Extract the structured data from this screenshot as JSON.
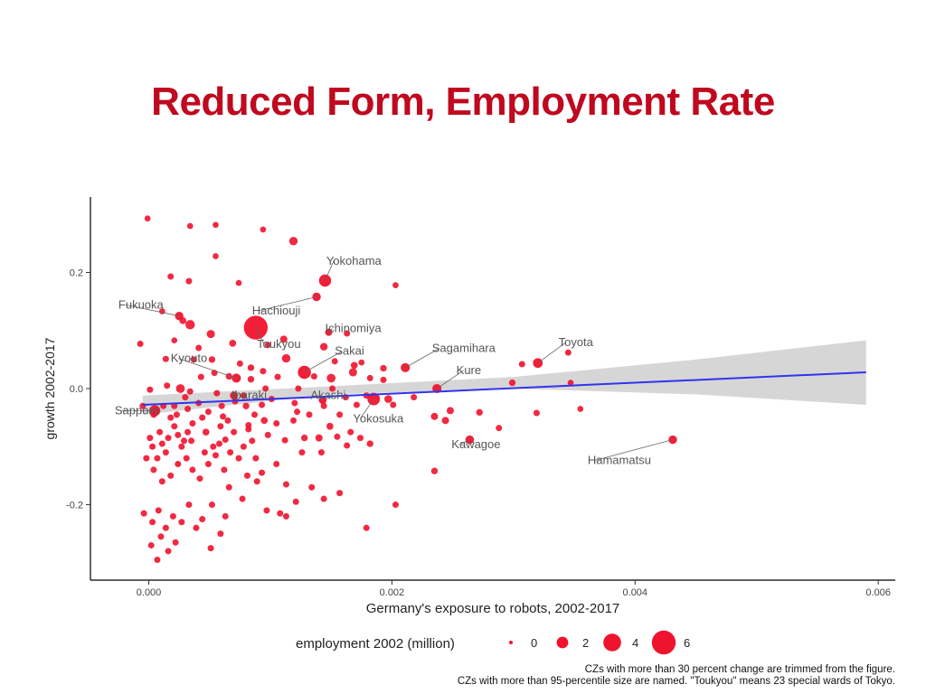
{
  "title": "Reduced Form, Employment Rate",
  "chart_data": {
    "type": "scatter",
    "xlabel": "Germany's exposure to robots, 2002-2017",
    "ylabel": "growth 2002-2017",
    "xlim": [
      -0.00048,
      0.00614
    ],
    "ylim": [
      -0.33,
      0.33
    ],
    "xticks": [
      0.0,
      0.002,
      0.004,
      0.006
    ],
    "xtick_labels": [
      "0.000",
      "0.002",
      "0.004",
      "0.006"
    ],
    "yticks": [
      -0.2,
      0.0,
      0.2
    ],
    "ytick_labels": [
      "-0.2",
      "0.0",
      "0.2"
    ],
    "color": "#f0132d",
    "fit_color": "#3333ee",
    "band_color": "#d6d6d6",
    "fit": {
      "x0": -5e-05,
      "y0": -0.028,
      "x1": 0.0059,
      "y1": 0.028
    },
    "band": {
      "upper": [
        [
          -5e-05,
          -0.012
        ],
        [
          0.0015,
          0.004
        ],
        [
          0.003,
          0.02
        ],
        [
          0.0045,
          0.05
        ],
        [
          0.0059,
          0.083
        ]
      ],
      "lower": [
        [
          0.0059,
          -0.028
        ],
        [
          0.0045,
          -0.01
        ],
        [
          0.003,
          0.0
        ],
        [
          0.0015,
          -0.01
        ],
        [
          -5e-05,
          -0.045
        ]
      ]
    },
    "legend": {
      "title": "employment 2002 (million)",
      "entries": [
        {
          "label": "0",
          "size": 0
        },
        {
          "label": "2",
          "size": 2
        },
        {
          "label": "4",
          "size": 4
        },
        {
          "label": "6",
          "size": 6
        }
      ]
    },
    "notes": [
      "CZs with more than 30 percent change are trimmed from the figure.",
      "CZs with more than 95-percentile size are named. \"Toukyou\" means 23 special wards of Tokyo."
    ],
    "named": [
      {
        "label": "Yokohama",
        "x": 0.00145,
        "y": 0.186,
        "size": 2.2,
        "lx": 0.00146,
        "ly": 0.213,
        "anchor": "start"
      },
      {
        "label": "Fukuoka",
        "x": 0.00025,
        "y": 0.125,
        "size": 1.0,
        "lx": -0.00025,
        "ly": 0.138,
        "anchor": "start"
      },
      {
        "label": "Hachiouji",
        "x": 0.00138,
        "y": 0.158,
        "size": 1.0,
        "lx": 0.00085,
        "ly": 0.128,
        "anchor": "start"
      },
      {
        "label": "Ichinomiya",
        "x": 0.00148,
        "y": 0.097,
        "size": 0.6,
        "lx": 0.00145,
        "ly": 0.097,
        "anchor": "start"
      },
      {
        "label": "Toukyou",
        "x": 0.00088,
        "y": 0.105,
        "size": 6.0,
        "lx": 0.00089,
        "ly": 0.07,
        "anchor": "start"
      },
      {
        "label": "Sakai",
        "x": 0.00128,
        "y": 0.028,
        "size": 2.5,
        "lx": 0.00153,
        "ly": 0.058,
        "anchor": "start"
      },
      {
        "label": "Kyouto",
        "x": 0.00072,
        "y": 0.018,
        "size": 1.2,
        "lx": 0.00018,
        "ly": 0.046,
        "anchor": "start"
      },
      {
        "label": "Sagamihara",
        "x": 0.00211,
        "y": 0.036,
        "size": 1.2,
        "lx": 0.00233,
        "ly": 0.063,
        "anchor": "start"
      },
      {
        "label": "Toyota",
        "x": 0.0032,
        "y": 0.044,
        "size": 1.4,
        "lx": 0.00337,
        "ly": 0.073,
        "anchor": "start"
      },
      {
        "label": "Kure",
        "x": 0.00237,
        "y": 0.0,
        "size": 1.2,
        "lx": 0.00253,
        "ly": 0.025,
        "anchor": "start"
      },
      {
        "label": "Ibaraki",
        "x": 0.0007,
        "y": -0.012,
        "size": 0.8,
        "lx": 0.00068,
        "ly": -0.018,
        "anchor": "start"
      },
      {
        "label": "Akashi",
        "x": 0.00143,
        "y": -0.02,
        "size": 0.8,
        "lx": 0.00133,
        "ly": -0.018,
        "anchor": "start"
      },
      {
        "label": "Sapporo",
        "x": 5e-05,
        "y": -0.038,
        "size": 1.8,
        "lx": -0.00028,
        "ly": -0.044,
        "anchor": "start"
      },
      {
        "label": "Yokosuka",
        "x": 0.00185,
        "y": -0.018,
        "size": 2.3,
        "lx": 0.00168,
        "ly": -0.058,
        "anchor": "start"
      },
      {
        "label": "Kawagoe",
        "x": 0.00264,
        "y": -0.088,
        "size": 1.0,
        "lx": 0.00249,
        "ly": -0.103,
        "anchor": "start"
      },
      {
        "label": "Hamamatsu",
        "x": 0.00431,
        "y": -0.088,
        "size": 1.0,
        "lx": 0.00361,
        "ly": -0.13,
        "anchor": "start"
      }
    ],
    "points": [
      [
        -1e-05,
        0.293,
        0.2
      ],
      [
        0.00034,
        0.28,
        0.2
      ],
      [
        0.00055,
        0.282,
        0.2
      ],
      [
        0.00094,
        0.274,
        0.2
      ],
      [
        0.00119,
        0.254,
        1.0
      ],
      [
        0.00055,
        0.228,
        0.2
      ],
      [
        0.00018,
        0.193,
        0.3
      ],
      [
        0.00033,
        0.185,
        0.3
      ],
      [
        0.00074,
        0.182,
        0.2
      ],
      [
        0.00203,
        0.178,
        0.2
      ],
      [
        0.00011,
        0.133,
        0.2
      ],
      [
        0.00028,
        0.117,
        0.5
      ],
      [
        0.00034,
        0.11,
        1.3
      ],
      [
        0.00051,
        0.094,
        0.9
      ],
      [
        0.00111,
        0.085,
        0.6
      ],
      [
        0.00144,
        0.072,
        0.7
      ],
      [
        0.00163,
        0.095,
        0.3
      ],
      [
        0.00098,
        0.075,
        0.3
      ],
      [
        0.00069,
        0.078,
        0.5
      ],
      [
        -7e-05,
        0.077,
        0.3
      ],
      [
        0.00021,
        0.083,
        0.2
      ],
      [
        0.00041,
        0.07,
        0.3
      ],
      [
        0.00052,
        0.05,
        0.4
      ],
      [
        0.00113,
        0.052,
        1.0
      ],
      [
        0.00037,
        0.05,
        0.3
      ],
      [
        0.00014,
        0.051,
        0.3
      ],
      [
        0.00153,
        0.047,
        0.3
      ],
      [
        0.00169,
        0.04,
        0.5
      ],
      [
        0.00193,
        0.035,
        0.4
      ],
      [
        0.00175,
        0.045,
        0.2
      ],
      [
        0.00075,
        0.043,
        0.3
      ],
      [
        0.00084,
        0.036,
        0.4
      ],
      [
        0.00094,
        0.03,
        0.3
      ],
      [
        0.00054,
        0.027,
        0.3
      ],
      [
        0.00043,
        0.02,
        0.3
      ],
      [
        0.00066,
        0.021,
        0.4
      ],
      [
        0.00084,
        0.016,
        0.4
      ],
      [
        0.00106,
        0.02,
        0.3
      ],
      [
        0.00136,
        0.021,
        0.3
      ],
      [
        0.0015,
        0.018,
        1.1
      ],
      [
        0.00168,
        0.028,
        0.9
      ],
      [
        0.00182,
        0.018,
        0.3
      ],
      [
        0.00193,
        0.015,
        0.3
      ],
      [
        0.00151,
        0.0,
        0.3
      ],
      [
        0.00123,
        0.0,
        0.3
      ],
      [
        0.00096,
        0.0,
        0.3
      ],
      [
        0.00026,
        0.0,
        1.1
      ],
      [
        0.00015,
        0.005,
        0.3
      ],
      [
        1e-05,
        -0.002,
        0.3
      ],
      [
        0.00034,
        -0.005,
        0.3
      ],
      [
        0.00056,
        -0.008,
        0.3
      ],
      [
        0.00078,
        -0.012,
        0.3
      ],
      [
        0.00101,
        -0.018,
        0.3
      ],
      [
        0.00179,
        -0.012,
        0.3
      ],
      [
        0.00197,
        -0.018,
        0.8
      ],
      [
        0.00162,
        -0.015,
        0.3
      ],
      [
        0.00218,
        -0.015,
        0.3
      ],
      [
        0.00041,
        -0.025,
        0.3
      ],
      [
        0.00071,
        -0.022,
        0.3
      ],
      [
        0.00012,
        -0.03,
        0.3
      ],
      [
        0.0008,
        -0.03,
        0.4
      ],
      [
        -5e-05,
        -0.03,
        0.3
      ],
      [
        0.00093,
        -0.028,
        0.3
      ],
      [
        0.0012,
        -0.025,
        0.3
      ],
      [
        0.00144,
        -0.03,
        0.3
      ],
      [
        0.00171,
        -0.028,
        0.3
      ],
      [
        0.00201,
        -0.028,
        0.3
      ],
      [
        0.00248,
        -0.038,
        0.6
      ],
      [
        0.00272,
        -0.041,
        0.4
      ],
      [
        0.00299,
        0.01,
        0.4
      ],
      [
        0.00307,
        0.042,
        0.3
      ],
      [
        0.00345,
        0.062,
        0.3
      ],
      [
        0.00347,
        0.01,
        0.2
      ],
      [
        0.00355,
        -0.035,
        0.2
      ],
      [
        0.00319,
        -0.042,
        0.3
      ],
      [
        0.00288,
        -0.068,
        0.3
      ],
      [
        0.00235,
        -0.048,
        0.6
      ],
      [
        0.00244,
        -0.055,
        0.6
      ],
      [
        0.00235,
        -0.142,
        0.4
      ],
      [
        0.00203,
        -0.2,
        0.3
      ],
      [
        0.00179,
        -0.24,
        0.3
      ],
      [
        0.00182,
        -0.095,
        0.4
      ],
      [
        0.00163,
        -0.098,
        0.3
      ],
      [
        0.00155,
        -0.083,
        0.3
      ],
      [
        0.0014,
        -0.085,
        0.6
      ],
      [
        0.00142,
        -0.11,
        0.3
      ],
      [
        0.00157,
        -0.045,
        0.3
      ],
      [
        0.00149,
        -0.065,
        0.5
      ],
      [
        0.00122,
        -0.04,
        0.3
      ],
      [
        0.00128,
        -0.085,
        0.4
      ],
      [
        0.00112,
        -0.089,
        0.3
      ],
      [
        0.00095,
        -0.055,
        0.5
      ],
      [
        0.00082,
        -0.063,
        0.3
      ],
      [
        0.00085,
        -0.09,
        0.3
      ],
      [
        0.00078,
        -0.1,
        0.3
      ],
      [
        0.0007,
        -0.075,
        0.3
      ],
      [
        0.00065,
        -0.055,
        0.3
      ],
      [
        0.00061,
        -0.048,
        0.3
      ],
      [
        0.00059,
        -0.065,
        0.3
      ],
      [
        0.00063,
        -0.088,
        0.3
      ],
      [
        0.00053,
        -0.1,
        0.3
      ],
      [
        0.00047,
        -0.075,
        0.5
      ],
      [
        0.00044,
        -0.05,
        0.3
      ],
      [
        0.00036,
        -0.06,
        0.3
      ],
      [
        0.00032,
        -0.075,
        0.3
      ],
      [
        0.00029,
        -0.09,
        0.3
      ],
      [
        0.00027,
        -0.1,
        0.3
      ],
      [
        0.00024,
        -0.08,
        0.3
      ],
      [
        0.00021,
        -0.065,
        0.3
      ],
      [
        0.00018,
        -0.05,
        0.3
      ],
      [
        0.00016,
        -0.085,
        0.3
      ],
      [
        0.00014,
        -0.11,
        0.3
      ],
      [
        0.00011,
        -0.095,
        0.3
      ],
      [
        9e-05,
        -0.075,
        0.3
      ],
      [
        7e-05,
        -0.12,
        0.3
      ],
      [
        3e-05,
        -0.1,
        0.3
      ],
      [
        1e-05,
        -0.085,
        0.3
      ],
      [
        -2e-05,
        -0.12,
        0.3
      ],
      [
        4e-05,
        -0.14,
        0.3
      ],
      [
        0.00011,
        -0.16,
        0.3
      ],
      [
        0.00018,
        -0.15,
        0.3
      ],
      [
        0.00024,
        -0.13,
        0.3
      ],
      [
        0.00031,
        -0.12,
        0.3
      ],
      [
        0.00036,
        -0.14,
        0.3
      ],
      [
        0.00042,
        -0.155,
        0.3
      ],
      [
        0.00049,
        -0.13,
        0.3
      ],
      [
        0.00055,
        -0.115,
        0.3
      ],
      [
        0.00062,
        -0.14,
        0.3
      ],
      [
        0.00066,
        -0.17,
        0.3
      ],
      [
        0.00074,
        -0.12,
        0.3
      ],
      [
        0.00081,
        -0.15,
        0.3
      ],
      [
        0.00089,
        -0.16,
        0.3
      ],
      [
        0.00093,
        -0.145,
        0.3
      ],
      [
        0.00105,
        -0.13,
        0.3
      ],
      [
        0.00113,
        -0.165,
        0.3
      ],
      [
        0.00121,
        -0.195,
        0.3
      ],
      [
        0.00134,
        -0.17,
        0.3
      ],
      [
        0.00144,
        -0.19,
        0.3
      ],
      [
        0.00157,
        -0.18,
        0.3
      ],
      [
        0.00108,
        -0.215,
        0.3
      ],
      [
        0.00097,
        -0.21,
        0.3
      ],
      [
        0.00077,
        -0.19,
        0.3
      ],
      [
        0.00063,
        -0.22,
        0.3
      ],
      [
        0.00052,
        -0.2,
        0.3
      ],
      [
        0.00044,
        -0.225,
        0.3
      ],
      [
        0.00033,
        -0.2,
        0.3
      ],
      [
        0.00027,
        -0.23,
        0.3
      ],
      [
        0.0002,
        -0.22,
        0.3
      ],
      [
        0.00014,
        -0.24,
        0.3
      ],
      [
        8e-05,
        -0.21,
        0.3
      ],
      [
        3e-05,
        -0.23,
        0.3
      ],
      [
        -4e-05,
        -0.215,
        0.3
      ],
      [
        2e-05,
        -0.27,
        0.3
      ],
      [
        0.0001,
        -0.255,
        0.3
      ],
      [
        0.00016,
        -0.28,
        0.3
      ],
      [
        7e-05,
        -0.295,
        0.3
      ],
      [
        0.00022,
        -0.265,
        0.3
      ],
      [
        0.00051,
        -0.275,
        0.3
      ],
      [
        0.00039,
        -0.24,
        0.3
      ],
      [
        0.00059,
        -0.25,
        0.3
      ],
      [
        0.00113,
        -0.22,
        0.3
      ],
      [
        4e-05,
        -0.045,
        0.3
      ],
      [
        0.00032,
        -0.035,
        0.3
      ],
      [
        0.00021,
        -0.03,
        0.3
      ],
      [
        0.0003,
        -0.015,
        0.3
      ],
      [
        0.00049,
        -0.04,
        0.3
      ],
      [
        0.0006,
        -0.03,
        0.3
      ],
      [
        0.00087,
        -0.045,
        0.3
      ],
      [
        0.00119,
        -0.055,
        0.3
      ],
      [
        0.00132,
        -0.045,
        0.3
      ],
      [
        0.00166,
        -0.075,
        0.3
      ],
      [
        0.00174,
        -0.085,
        0.3
      ],
      [
        0.00105,
        -0.06,
        0.3
      ],
      [
        0.00098,
        -0.08,
        0.3
      ],
      [
        0.00035,
        -0.09,
        0.3
      ],
      [
        0.00067,
        -0.11,
        0.3
      ],
      [
        0.00023,
        -0.045,
        0.3
      ],
      [
        0.00046,
        -0.11,
        0.3
      ],
      [
        0.00058,
        -0.095,
        0.3
      ],
      [
        0.00082,
        -0.07,
        0.3
      ],
      [
        0.00126,
        -0.11,
        0.3
      ],
      [
        0.00088,
        -0.12,
        0.3
      ]
    ]
  }
}
